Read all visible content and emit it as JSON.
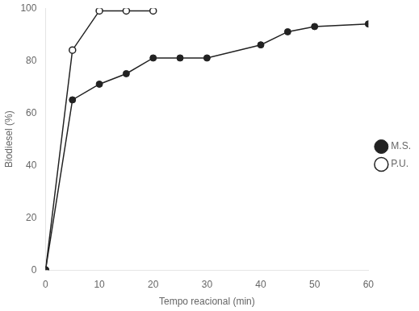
{
  "chart_data": {
    "type": "line",
    "xlabel": "Tempo reacional (min)",
    "ylabel": "Biodiesel (%)",
    "series": [
      {
        "name": "M.S.",
        "color": "#222222",
        "marker": "dot",
        "x": [
          0,
          5,
          10,
          15,
          20,
          25,
          30,
          40,
          45,
          50,
          60
        ],
        "values": [
          0,
          65,
          71,
          75,
          81,
          81,
          81,
          86,
          91,
          93,
          94
        ]
      },
      {
        "name": "P.U.",
        "color": "#222222",
        "marker": "circle",
        "x": [
          0,
          5,
          10,
          15,
          20
        ],
        "values": [
          0,
          84,
          99,
          99,
          99
        ]
      }
    ],
    "xlim": [
      0,
      60
    ],
    "ylim": [
      0,
      100
    ],
    "xticks": [
      0,
      10,
      20,
      30,
      40,
      50,
      60
    ],
    "yticks": [
      0,
      20,
      40,
      60,
      80,
      100
    ],
    "grid": false,
    "legend": "right"
  }
}
